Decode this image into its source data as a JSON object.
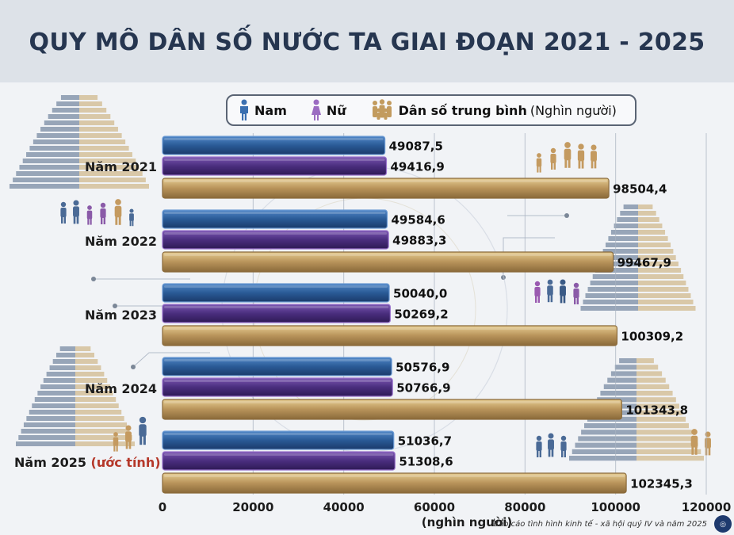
{
  "title": "QUY MÔ DÂN SỐ NƯỚC TA GIAI ĐOẠN 2021 - 2025",
  "legend": {
    "male": "Nam",
    "female": "Nữ",
    "average": "Dân số trung bình",
    "unit": "(Nghìn người)"
  },
  "year_note": "(ước tính)",
  "source": "Báo cáo tình hình kinh tế - xã hội quý IV và năm 2025",
  "colors": {
    "male": "#2a5a96",
    "female": "#4a2e7e",
    "average": "#c4a060",
    "title": "#263650"
  },
  "chart_data": {
    "type": "bar",
    "orientation": "horizontal",
    "categories": [
      "Năm 2021",
      "Năm 2022",
      "Năm 2023",
      "Năm 2024",
      "Năm 2025"
    ],
    "series": [
      {
        "name": "Nam",
        "values": [
          49087.5,
          49584.6,
          50040.0,
          50576.9,
          51036.7
        ],
        "labels": [
          "49087,5",
          "49584,6",
          "50040,0",
          "50576,9",
          "51036,7"
        ]
      },
      {
        "name": "Nữ",
        "values": [
          49416.9,
          49883.3,
          50269.2,
          50766.9,
          51308.6
        ],
        "labels": [
          "49416,9",
          "49883,3",
          "50269,2",
          "50766,9",
          "51308,6"
        ]
      },
      {
        "name": "Dân số trung bình",
        "values": [
          98504.4,
          99467.9,
          100309.2,
          101343.8,
          102345.3
        ],
        "labels": [
          "98504,4",
          "99467,9",
          "100309,2",
          "101343,8",
          "102345,3"
        ]
      }
    ],
    "xlim": [
      0,
      120000
    ],
    "xticks": [
      0,
      20000,
      40000,
      60000,
      80000,
      100000,
      120000
    ],
    "xtick_labels": [
      "0",
      "20000",
      "40000",
      "60000",
      "80000",
      "100000",
      "120000"
    ],
    "xlabel": "(nghìn người)",
    "grid": true,
    "legend_position": "top"
  }
}
